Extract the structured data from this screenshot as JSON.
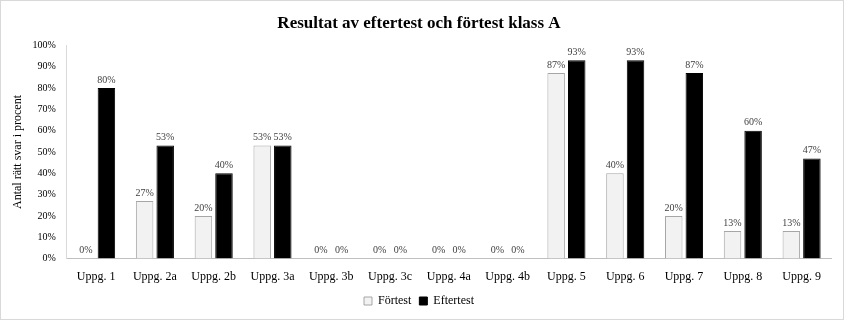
{
  "chart_data": {
    "type": "bar",
    "title": "Resultat av eftertest och förtest klass A",
    "y_label": "Antal rätt svar i procent",
    "categories": [
      "Uppg. 1",
      "Uppg. 2a",
      "Uppg. 2b",
      "Uppg. 3a",
      "Uppg. 3b",
      "Uppg. 3c",
      "Uppg. 4a",
      "Uppg. 4b",
      "Uppg. 5",
      "Uppg. 6",
      "Uppg. 7",
      "Uppg. 8",
      "Uppg. 9"
    ],
    "series": [
      {
        "name": "Förtest",
        "color": "#f2f2f2",
        "values": [
          0,
          27,
          20,
          53,
          0,
          0,
          0,
          0,
          87,
          40,
          20,
          13,
          13
        ],
        "value_labels": [
          "0%",
          "27%",
          "20%",
          "53%",
          "0%",
          "0%",
          "0%",
          "0%",
          "87%",
          "40%",
          "20%",
          "13%",
          "13%"
        ]
      },
      {
        "name": "Eftertest",
        "color": "#000000",
        "values": [
          80,
          53,
          40,
          53,
          0,
          0,
          0,
          0,
          93,
          93,
          87,
          60,
          47
        ],
        "value_labels": [
          "80%",
          "53%",
          "40%",
          "53%",
          "0%",
          "0%",
          "0%",
          "0%",
          "93%",
          "93%",
          "87%",
          "60%",
          "47%"
        ]
      }
    ],
    "ylim": [
      0,
      100
    ],
    "yticks": [
      {
        "value": 0,
        "label": "0%"
      },
      {
        "value": 10,
        "label": "10%"
      },
      {
        "value": 20,
        "label": "20%"
      },
      {
        "value": 30,
        "label": "30%"
      },
      {
        "value": 40,
        "label": "40%"
      },
      {
        "value": 50,
        "label": "50%"
      },
      {
        "value": 60,
        "label": "60%"
      },
      {
        "value": 70,
        "label": "70%"
      },
      {
        "value": 80,
        "label": "80%"
      },
      {
        "value": 90,
        "label": "90%"
      },
      {
        "value": 100,
        "label": "100%"
      }
    ],
    "grid": false,
    "legend": "bottom",
    "data_labels": true
  }
}
